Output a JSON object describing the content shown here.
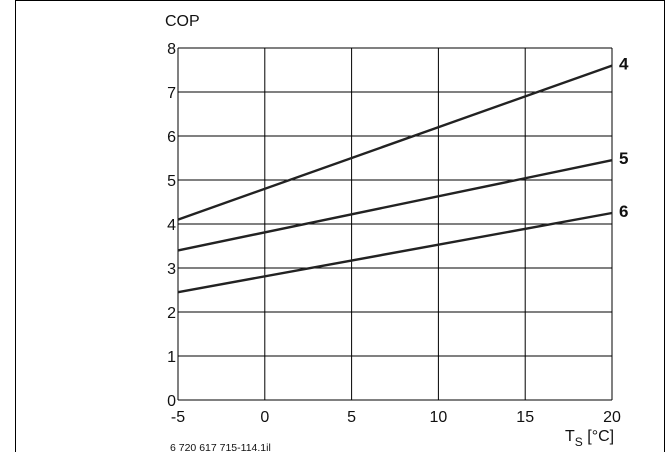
{
  "chart_data": {
    "type": "line",
    "title": "",
    "ylabel": "COP",
    "xlabel_main": "T",
    "xlabel_sub": "S",
    "xlabel_unit": " [°C]",
    "xlim": [
      -5,
      20
    ],
    "ylim": [
      0,
      8
    ],
    "xticks": [
      "-5",
      "0",
      "5",
      "10",
      "15",
      "20"
    ],
    "yticks": [
      "0",
      "1",
      "2",
      "3",
      "4",
      "5",
      "6",
      "7",
      "8"
    ],
    "grid": true,
    "series": [
      {
        "name": "4",
        "x": [
          -5,
          20
        ],
        "y": [
          4.1,
          7.6
        ]
      },
      {
        "name": "5",
        "x": [
          -5,
          20
        ],
        "y": [
          3.4,
          5.45
        ]
      },
      {
        "name": "6",
        "x": [
          -5,
          20
        ],
        "y": [
          2.45,
          4.25
        ]
      }
    ],
    "footnote": "6 720 617 715-114.1il"
  }
}
